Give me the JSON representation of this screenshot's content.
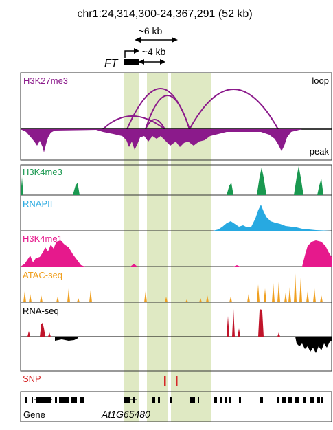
{
  "header": {
    "locus": "chr1:24,314,300-24,367,291 (52 kb)",
    "dist_6kb": "~6 kb",
    "dist_4kb": "~4 kb",
    "gene_name": "FT"
  },
  "tracks": {
    "h3k27me3": {
      "label": "H3K27me3",
      "loop_label": "loop",
      "peak_label": "peak",
      "color": "#8b1a8b"
    },
    "h3k4me3": {
      "label": "H3K4me3",
      "color": "#1a9850"
    },
    "rnapii": {
      "label": "RNAPII",
      "color": "#27a9e1"
    },
    "h3k4me1": {
      "label": "H3K4me1",
      "color": "#e6198c"
    },
    "atac": {
      "label": "ATAC-seq",
      "color": "#f0a020"
    },
    "rnaseq": {
      "label": "RNA-seq",
      "color_plus": "#c0142a",
      "color_minus": "#000000"
    },
    "snp": {
      "label": "SNP",
      "color": "#d62728"
    },
    "gene": {
      "label": "Gene",
      "gene_name": "At1G65480"
    }
  },
  "highlight_color": "#dfe9c3"
}
